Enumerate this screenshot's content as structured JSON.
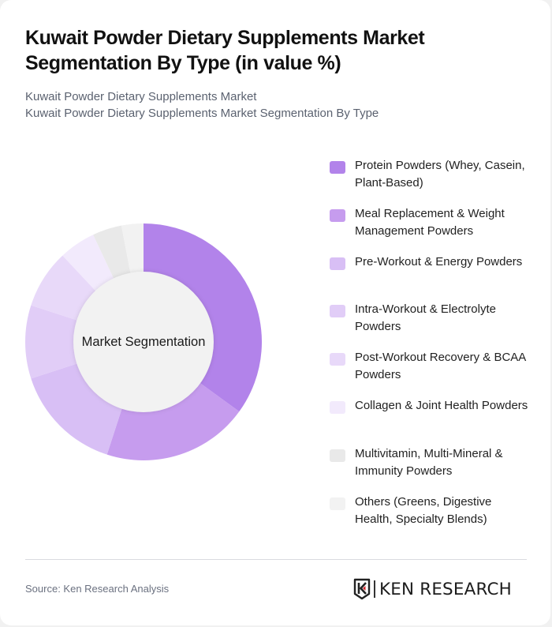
{
  "header": {
    "title": "Kuwait Powder Dietary Supplements Market Segmentation By Type (in value %)",
    "subtitle_line1": "Kuwait Powder Dietary Supplements Market",
    "subtitle_line2": "Kuwait Powder Dietary Supplements Market Segmentation By Type"
  },
  "chart": {
    "center_label": "Market Segmentation"
  },
  "legend": {
    "items": [
      {
        "label": "Protein Powders (Whey, Casein, Plant-Based)",
        "color": "#b283ea"
      },
      {
        "label": "Meal Replacement & Weight Management Powders",
        "color": "#c69cee"
      },
      {
        "label": "Pre-Workout & Energy Powders",
        "color": "#d8bff5"
      },
      {
        "label": "Intra-Workout & Electrolyte Powders",
        "color": "#e1cdf7"
      },
      {
        "label": "Post-Workout Recovery & BCAA Powders",
        "color": "#e8d9f9"
      },
      {
        "label": "Collagen & Joint Health Powders",
        "color": "#f2eafc"
      },
      {
        "label": "Multivitamin, Multi-Mineral & Immunity Powders",
        "color": "#e9e9e9"
      },
      {
        "label": "Others (Greens, Digestive Health, Specialty Blends)",
        "color": "#f2f2f2"
      }
    ]
  },
  "footer": {
    "source": "Source: Ken Research Analysis",
    "logo_text": "KEN RESEARCH"
  },
  "chart_data": {
    "type": "pie",
    "subtype": "donut",
    "title": "Kuwait Powder Dietary Supplements Market Segmentation By Type (in value %)",
    "center_label": "Market Segmentation",
    "categories": [
      "Protein Powders (Whey, Casein, Plant-Based)",
      "Meal Replacement & Weight Management Powders",
      "Pre-Workout & Energy Powders",
      "Intra-Workout & Electrolyte Powders",
      "Post-Workout Recovery & BCAA Powders",
      "Collagen & Joint Health Powders",
      "Multivitamin, Multi-Mineral & Immunity Powders",
      "Others (Greens, Digestive Health, Specialty Blends)"
    ],
    "values": [
      35,
      20,
      15,
      10,
      8,
      5,
      4,
      3
    ],
    "colors": [
      "#b283ea",
      "#c69cee",
      "#d8bff5",
      "#e1cdf7",
      "#e8d9f9",
      "#f2eafc",
      "#e9e9e9",
      "#f2f2f2"
    ],
    "unit": "%",
    "legend_position": "right",
    "start_angle_deg": 0,
    "direction": "clockwise"
  }
}
